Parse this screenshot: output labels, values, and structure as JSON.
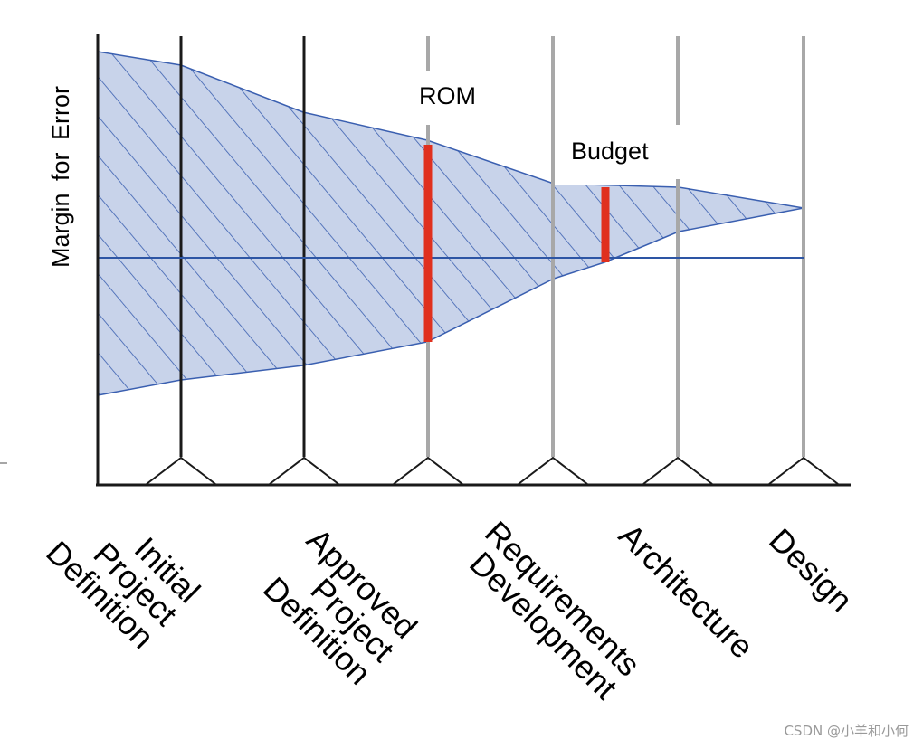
{
  "y_axis_label": "Margin for Error",
  "annotations": {
    "rom": "ROM",
    "budget": "Budget"
  },
  "phases": [
    {
      "lines": [
        "Initial",
        "Project",
        "Definition"
      ]
    },
    {
      "lines": [
        "Approved",
        "Project",
        "Definition"
      ]
    },
    {
      "lines": [
        "Requirements",
        "Development"
      ]
    },
    {
      "lines": [
        "Architecture"
      ]
    },
    {
      "lines": [
        "Design"
      ]
    }
  ],
  "watermark": "CSDN @小羊和小何",
  "colors": {
    "band_fill": "#c8d3ea",
    "band_edge": "#3a5fb0",
    "center_line": "#2d55a4",
    "marker": "#e0301e",
    "axis": "#1a1a1a",
    "gate_dark": "#1a1a1a",
    "gate_light": "#a8a8a8"
  }
}
